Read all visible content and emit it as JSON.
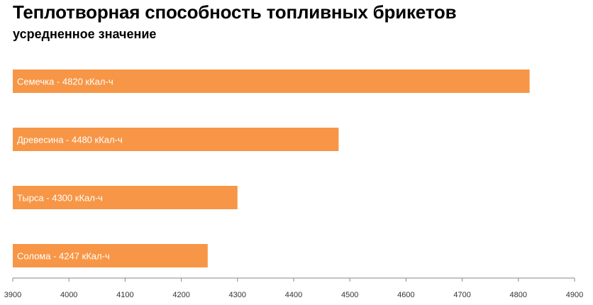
{
  "chart_data": {
    "type": "bar",
    "orientation": "horizontal",
    "title": "Теплотворная способность топливных брикетов",
    "subtitle": "усредненное значение",
    "categories": [
      "Семечка - 4820 кКал-ч",
      "Древесина - 4480 кКал-ч",
      "Тырса - 4300 кКал-ч",
      "Солома - 4247 кКал-ч"
    ],
    "values": [
      4820,
      4480,
      4300,
      4247
    ],
    "xlim": [
      3900,
      4900
    ],
    "xticks": [
      3900,
      4000,
      4100,
      4200,
      4300,
      4400,
      4500,
      4600,
      4700,
      4800,
      4900
    ],
    "bar_color": "#f79646",
    "label_color": "#ffffff",
    "grid": false,
    "legend": "none"
  }
}
